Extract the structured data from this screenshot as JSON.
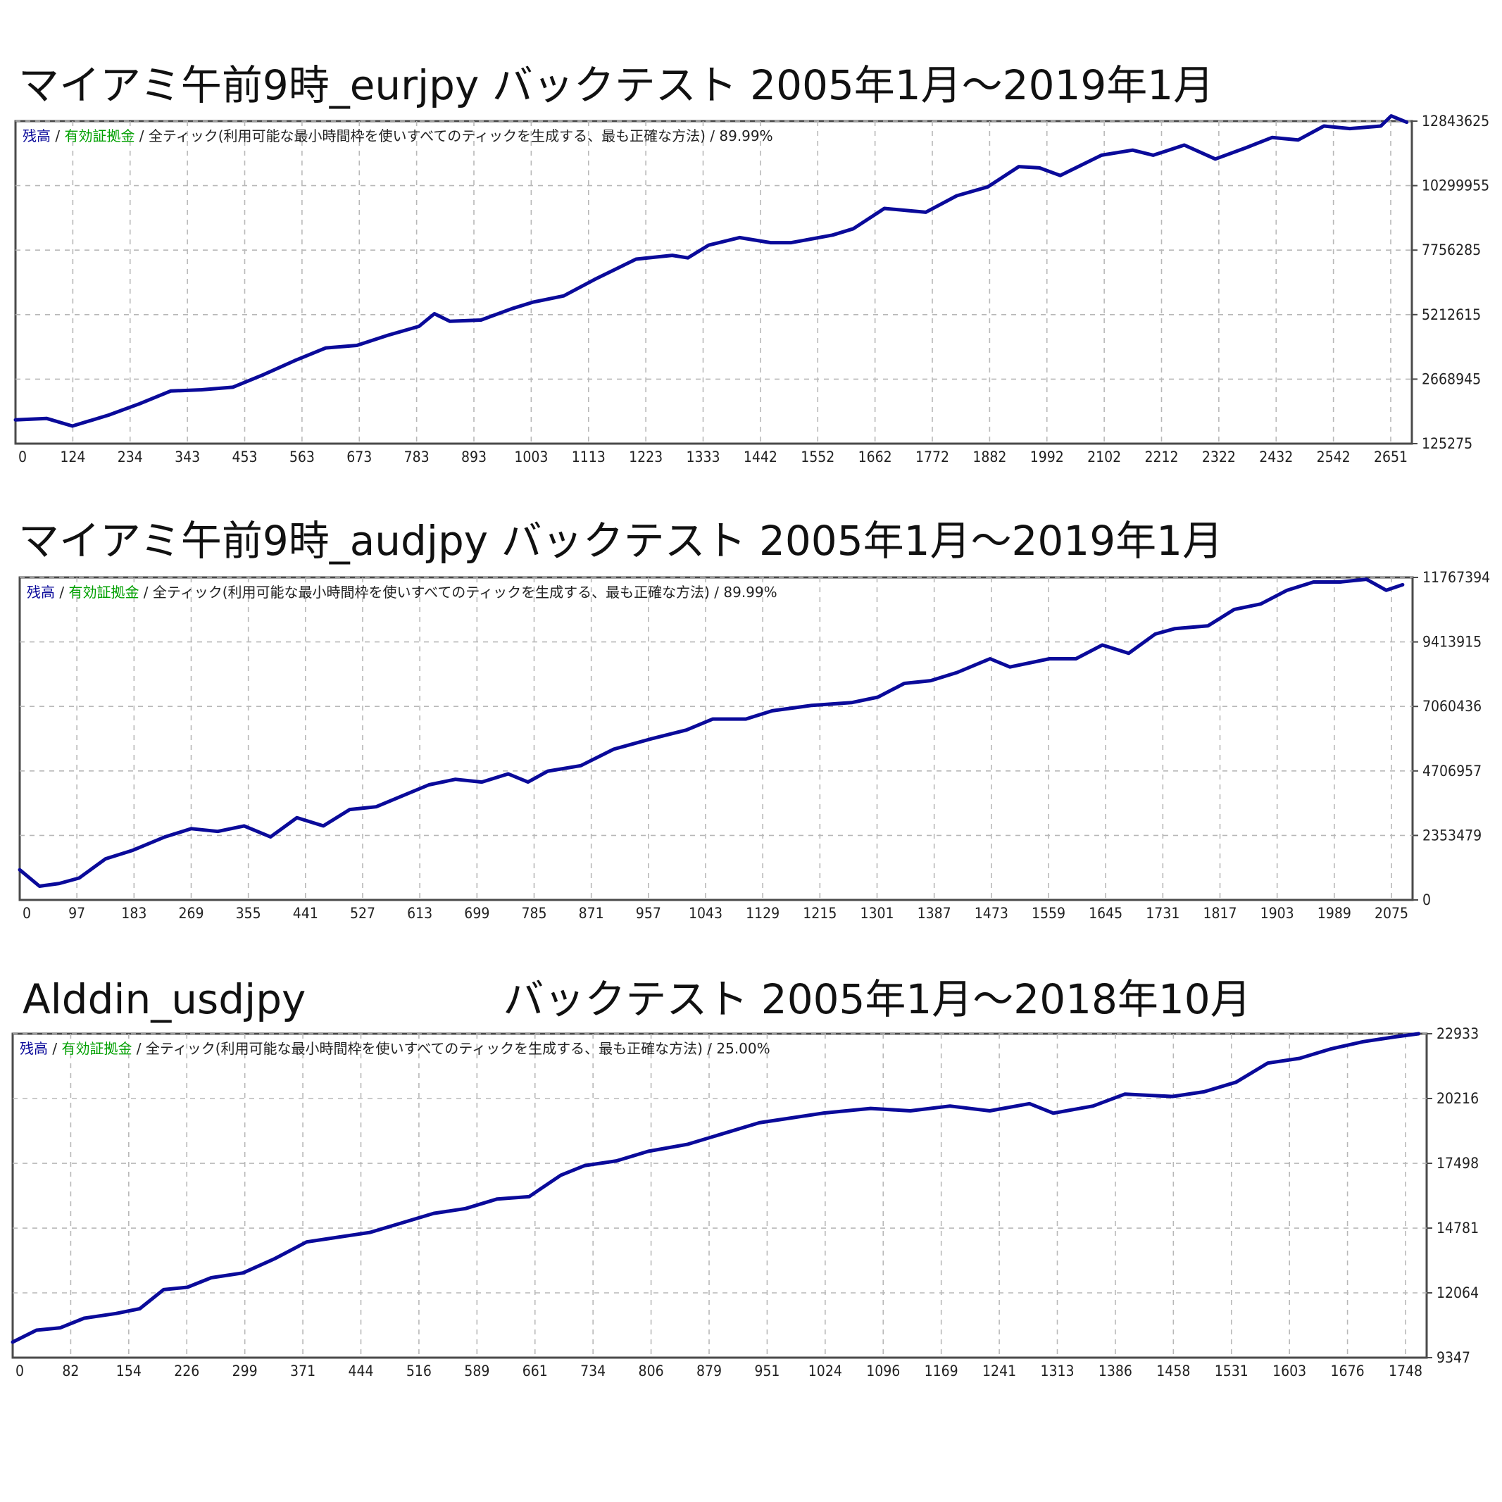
{
  "colors": {
    "balance": "#0a0a9a",
    "equity": "#00a000",
    "legend_text": "#222222",
    "frame": "#4a4a4a",
    "grid": "#b8b8b8"
  },
  "chart_data": [
    {
      "type": "line",
      "title_left": "マイアミ午前9時_eurjpy",
      "title_right": "バックテスト 2005年1月～2019年1月",
      "legend": {
        "balance": "残高",
        "sep1": "/",
        "equity": "有効証拠金",
        "sep2": "/",
        "model": "全ティック(利用可能な最小時間枠を使いすべてのティックを生成する、最も正確な方法)",
        "sep3": "/",
        "quality": "89.99%",
        "placement": "top-left"
      },
      "x_ticks": [
        "0",
        "124",
        "234",
        "343",
        "453",
        "563",
        "673",
        "783",
        "893",
        "1003",
        "1113",
        "1223",
        "1333",
        "1442",
        "1552",
        "1662",
        "1772",
        "1882",
        "1992",
        "2102",
        "2212",
        "2322",
        "2432",
        "2542",
        "2651"
      ],
      "y_ticks": [
        "125275",
        "2668945",
        "5212615",
        "7756285",
        "10299955",
        "12843625"
      ],
      "xlim": [
        0,
        2700
      ],
      "ylim": [
        125275,
        12843625
      ],
      "grid": true,
      "series": [
        {
          "x": [
            0,
            60,
            110,
            180,
            240,
            300,
            360,
            420,
            480,
            540,
            600,
            660,
            720,
            780,
            810,
            840,
            900,
            960,
            1000,
            1060,
            1120,
            1200,
            1270,
            1300,
            1340,
            1400,
            1460,
            1500,
            1580,
            1620,
            1680,
            1760,
            1820,
            1880,
            1940,
            1980,
            2020,
            2100,
            2160,
            2200,
            2260,
            2320,
            2380,
            2430,
            2480,
            2530,
            2580,
            2640,
            2660,
            2690
          ],
          "y": [
            1060000,
            1120000,
            820000,
            1250000,
            1700000,
            2200000,
            2250000,
            2350000,
            2850000,
            3400000,
            3900000,
            4000000,
            4400000,
            4750000,
            5250000,
            4950000,
            5000000,
            5450000,
            5700000,
            5950000,
            6600000,
            7400000,
            7550000,
            7450000,
            7950000,
            8250000,
            8050000,
            8050000,
            8350000,
            8600000,
            9400000,
            9250000,
            9900000,
            10250000,
            11050000,
            11000000,
            10700000,
            11500000,
            11700000,
            11500000,
            11900000,
            11350000,
            11800000,
            12200000,
            12100000,
            12650000,
            12550000,
            12650000,
            13050000,
            12800000
          ]
        }
      ]
    },
    {
      "type": "line",
      "title_left": "マイアミ午前9時_audjpy",
      "title_right": "バックテスト 2005年1月～2019年1月",
      "legend": {
        "balance": "残高",
        "sep1": "/",
        "equity": "有効証拠金",
        "sep2": "/",
        "model": "全ティック(利用可能な最小時間枠を使いすべてのティックを生成する、最も正確な方法)",
        "sep3": "/",
        "quality": "89.99%",
        "placement": "top-left"
      },
      "x_ticks": [
        "0",
        "97",
        "183",
        "269",
        "355",
        "441",
        "527",
        "613",
        "699",
        "785",
        "871",
        "957",
        "1043",
        "1129",
        "1215",
        "1301",
        "1387",
        "1473",
        "1559",
        "1645",
        "1731",
        "1817",
        "1903",
        "1989",
        "2075"
      ],
      "y_ticks": [
        "0",
        "2353479",
        "4706957",
        "7060436",
        "9413915",
        "11767394"
      ],
      "xlim": [
        0,
        2110
      ],
      "ylim": [
        0,
        11767394
      ],
      "grid": true,
      "series": [
        {
          "x": [
            0,
            30,
            60,
            90,
            130,
            170,
            220,
            260,
            300,
            340,
            380,
            420,
            460,
            500,
            540,
            580,
            620,
            660,
            700,
            740,
            770,
            800,
            850,
            900,
            960,
            1010,
            1050,
            1100,
            1140,
            1200,
            1260,
            1300,
            1340,
            1380,
            1420,
            1470,
            1500,
            1560,
            1600,
            1640,
            1680,
            1720,
            1750,
            1800,
            1840,
            1880,
            1920,
            1960,
            2000,
            2040,
            2070,
            2095
          ],
          "y": [
            1100000,
            500000,
            600000,
            800000,
            1500000,
            1800000,
            2300000,
            2600000,
            2500000,
            2700000,
            2300000,
            3000000,
            2700000,
            3300000,
            3400000,
            3800000,
            4200000,
            4400000,
            4300000,
            4600000,
            4300000,
            4700000,
            4900000,
            5500000,
            5900000,
            6200000,
            6600000,
            6600000,
            6900000,
            7100000,
            7200000,
            7400000,
            7900000,
            8000000,
            8300000,
            8800000,
            8500000,
            8800000,
            8800000,
            9300000,
            9000000,
            9700000,
            9900000,
            10000000,
            10600000,
            10800000,
            11300000,
            11600000,
            11600000,
            11700000,
            11300000,
            11500000
          ]
        }
      ]
    },
    {
      "type": "line",
      "title_left": "Alddin_usdjpy",
      "title_right": "バックテスト 2005年1月～2018年10月",
      "legend": {
        "balance": "残高",
        "sep1": "/",
        "equity": "有効証拠金",
        "sep2": "/",
        "model": "全ティック(利用可能な最小時間枠を使いすべてのティックを生成する、最も正確な方法)",
        "sep3": "/",
        "quality": "25.00%",
        "placement": "top-left"
      },
      "x_ticks": [
        "0",
        "82",
        "154",
        "226",
        "299",
        "371",
        "444",
        "516",
        "589",
        "661",
        "734",
        "806",
        "879",
        "951",
        "1024",
        "1096",
        "1169",
        "1241",
        "1313",
        "1386",
        "1458",
        "1531",
        "1603",
        "1676",
        "1748"
      ],
      "y_ticks": [
        "9347",
        "12064",
        "14781",
        "17498",
        "20216",
        "22933"
      ],
      "xlim": [
        0,
        1780
      ],
      "ylim": [
        9347,
        22933
      ],
      "grid": true,
      "series": [
        {
          "x": [
            0,
            30,
            60,
            90,
            130,
            160,
            190,
            220,
            250,
            290,
            330,
            370,
            410,
            450,
            490,
            530,
            570,
            610,
            650,
            690,
            720,
            760,
            800,
            850,
            890,
            940,
            980,
            1020,
            1080,
            1130,
            1180,
            1230,
            1280,
            1310,
            1360,
            1400,
            1460,
            1500,
            1540,
            1580,
            1620,
            1660,
            1700,
            1740,
            1770
          ],
          "y": [
            10000,
            10500,
            10600,
            11000,
            11200,
            11400,
            12200,
            12300,
            12700,
            12900,
            13500,
            14200,
            14400,
            14600,
            15000,
            15400,
            15600,
            16000,
            16100,
            17000,
            17400,
            17600,
            18000,
            18300,
            18700,
            19200,
            19400,
            19600,
            19800,
            19700,
            19900,
            19700,
            20000,
            19600,
            19900,
            20400,
            20300,
            20500,
            20900,
            21700,
            21900,
            22300,
            22600,
            22800,
            22933
          ]
        }
      ]
    }
  ]
}
